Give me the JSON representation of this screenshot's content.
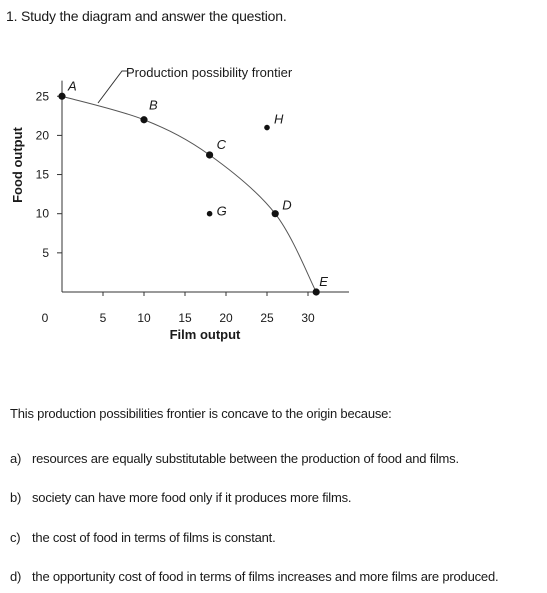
{
  "question": {
    "title": "1. Study the diagram and answer the question.",
    "stem": "This production possibilities frontier is concave to the origin because:",
    "options": [
      {
        "letter": "a)",
        "text": "resources are equally substitutable between the production of food and films."
      },
      {
        "letter": "b)",
        "text": "society can have more food only if it produces more films."
      },
      {
        "letter": "c)",
        "text": "the cost of food in terms of films is constant."
      },
      {
        "letter": "d)",
        "text": "the opportunity cost of food in terms of films increases and more films are produced."
      }
    ]
  },
  "chart_data": {
    "type": "line",
    "title": "",
    "xlabel": "Film output",
    "ylabel": "Food output",
    "annotation": "Production possibility frontier",
    "xlim": [
      0,
      35
    ],
    "ylim": [
      0,
      27
    ],
    "x_ticks": [
      0,
      5,
      10,
      15,
      20,
      25,
      30
    ],
    "y_ticks": [
      5,
      10,
      15,
      20,
      25
    ],
    "grid": false,
    "curve": [
      {
        "x": 0,
        "y": 25
      },
      {
        "x": 10,
        "y": 22
      },
      {
        "x": 18,
        "y": 17.5
      },
      {
        "x": 26,
        "y": 10
      },
      {
        "x": 31,
        "y": 0
      }
    ],
    "points": [
      {
        "label": "A",
        "x": 0,
        "y": 25
      },
      {
        "label": "B",
        "x": 10,
        "y": 22
      },
      {
        "label": "C",
        "x": 18,
        "y": 17.5
      },
      {
        "label": "D",
        "x": 26,
        "y": 10
      },
      {
        "label": "E",
        "x": 31,
        "y": 0
      },
      {
        "label": "G",
        "x": 18,
        "y": 10
      },
      {
        "label": "H",
        "x": 25,
        "y": 21
      }
    ]
  }
}
